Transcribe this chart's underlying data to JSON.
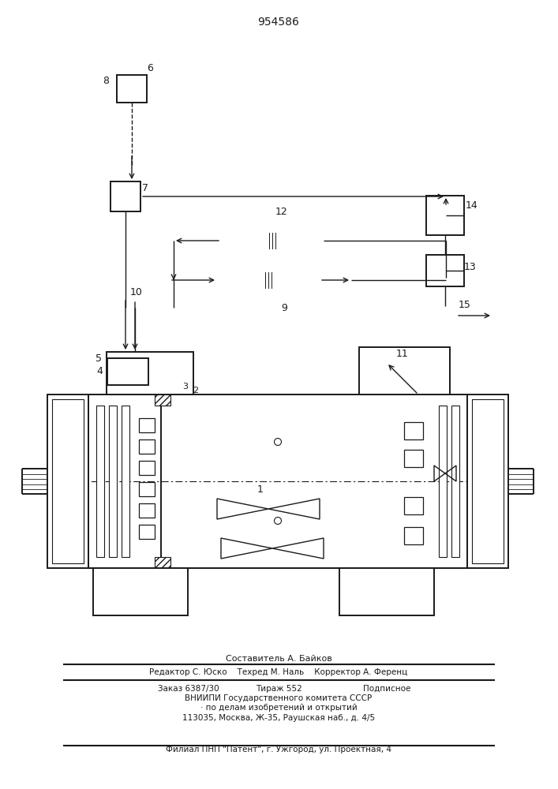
{
  "title": "954586",
  "bg_color": "#ffffff",
  "line_color": "#1a1a1a",
  "footer_lines": [
    "Составитель А. Байков",
    "Редактор С. Юско    Техред М. Наль    Корректор А. Ференц",
    "Заказ 6387/30    Тираж 552    Подписное",
    "ВНИИПИ Государственного комитета СССР",
    "· по делам изобретений и открытий",
    "113035, Москва, Ж-35, Раушская наб., д. 4/5",
    "Филиал ПНП «Патент», г. Ужгород, ул. Проектная, 4"
  ]
}
